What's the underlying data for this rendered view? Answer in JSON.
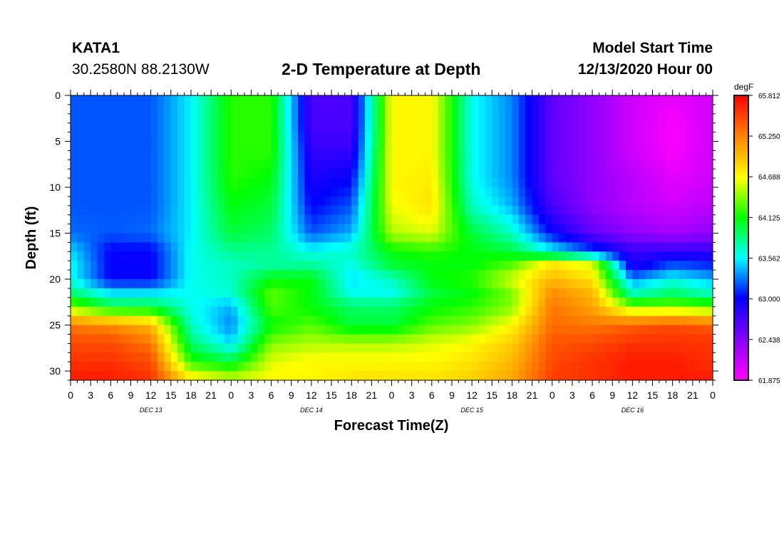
{
  "header": {
    "station": "KATA1",
    "coords": "30.2580N 88.2130W",
    "title": "2-D Temperature at Depth",
    "start_label": "Model Start Time",
    "start_value": "12/13/2020 Hour 00"
  },
  "chart_data": {
    "type": "heatmap",
    "title": "2-D Temperature at Depth",
    "xlabel": "Forecast Time(Z)",
    "ylabel": "Depth (ft)",
    "x_tick_labels": [
      "0",
      "3",
      "6",
      "9",
      "12",
      "15",
      "18",
      "21",
      "0",
      "3",
      "6",
      "9",
      "12",
      "15",
      "18",
      "21",
      "0",
      "3",
      "6",
      "9",
      "12",
      "15",
      "18",
      "21",
      "0",
      "3",
      "6",
      "9",
      "12",
      "15",
      "18",
      "21",
      "0"
    ],
    "day_labels": [
      "DEC 13",
      "DEC 14",
      "DEC 15",
      "DEC 16"
    ],
    "xlim_hours": [
      0,
      96
    ],
    "ylim_ft": [
      0,
      31
    ],
    "y_ticks": [
      0,
      5,
      10,
      15,
      20,
      25,
      30
    ],
    "y_tick_labels": [
      "0",
      "5",
      "10",
      "15",
      "20",
      "25",
      "30"
    ],
    "colorbar": {
      "unit": "degF",
      "min": 61.875,
      "max": 65.812,
      "labels": [
        "65.812",
        "65.250",
        "64.688",
        "64.125",
        "63.562",
        "63.000",
        "62.438",
        "61.875"
      ]
    },
    "grid": {
      "x_hours": [
        0,
        6,
        12,
        18,
        24,
        30,
        36,
        42,
        48,
        54,
        60,
        66,
        72,
        78,
        84,
        90,
        96
      ],
      "y_depths": [
        0,
        3,
        6,
        9,
        12,
        15,
        17,
        18.5,
        20,
        21.5,
        23,
        25,
        27,
        29,
        31
      ],
      "values": [
        [
          63.2,
          63.2,
          63.2,
          63.55,
          64.2,
          64.2,
          62.7,
          62.7,
          64.7,
          64.7,
          63.6,
          63.3,
          62.6,
          62.4,
          62.1,
          62.0,
          62.1
        ],
        [
          63.2,
          63.2,
          63.2,
          63.55,
          64.2,
          64.2,
          62.7,
          62.7,
          64.7,
          64.7,
          63.6,
          63.3,
          62.6,
          62.4,
          62.1,
          61.9,
          62.1
        ],
        [
          63.2,
          63.2,
          63.2,
          63.55,
          64.2,
          64.2,
          62.8,
          62.8,
          64.7,
          64.7,
          63.6,
          63.3,
          62.6,
          62.4,
          62.1,
          61.9,
          62.1
        ],
        [
          63.2,
          63.2,
          63.2,
          63.55,
          64.2,
          64.1,
          62.9,
          63.0,
          64.7,
          64.75,
          63.6,
          63.3,
          62.6,
          62.4,
          62.2,
          62.0,
          62.1
        ],
        [
          63.2,
          63.2,
          63.2,
          63.55,
          64.1,
          64.0,
          63.0,
          63.2,
          64.65,
          64.8,
          63.7,
          63.4,
          62.7,
          62.4,
          62.2,
          62.1,
          62.2
        ],
        [
          63.25,
          63.2,
          63.25,
          63.55,
          64.0,
          63.9,
          63.2,
          63.4,
          64.5,
          64.6,
          64.0,
          63.7,
          63.0,
          62.6,
          62.4,
          62.3,
          62.4
        ],
        [
          63.5,
          63.0,
          63.0,
          63.6,
          63.8,
          63.8,
          63.6,
          63.7,
          64.1,
          64.2,
          64.1,
          64.0,
          63.6,
          63.2,
          62.8,
          62.8,
          62.8
        ],
        [
          63.6,
          63.0,
          63.0,
          63.6,
          63.7,
          63.8,
          63.8,
          63.6,
          64.0,
          64.1,
          64.1,
          64.3,
          64.8,
          64.6,
          62.9,
          63.2,
          63.1
        ],
        [
          63.6,
          63.0,
          63.0,
          63.6,
          63.7,
          64.1,
          64.1,
          63.5,
          63.7,
          64.1,
          64.2,
          64.6,
          65.0,
          64.8,
          63.3,
          63.6,
          63.4
        ],
        [
          63.9,
          63.5,
          63.5,
          63.6,
          63.65,
          64.3,
          64.1,
          63.6,
          63.6,
          64.0,
          64.1,
          64.4,
          65.2,
          65.0,
          63.7,
          63.9,
          63.7
        ],
        [
          64.4,
          64.0,
          64.0,
          63.6,
          63.4,
          64.3,
          64.1,
          63.9,
          63.9,
          64.1,
          64.2,
          64.4,
          65.3,
          65.1,
          64.4,
          64.4,
          64.3
        ],
        [
          65.3,
          65.2,
          65.0,
          63.7,
          63.3,
          64.1,
          64.3,
          64.0,
          64.0,
          64.3,
          64.4,
          64.7,
          65.35,
          65.3,
          65.4,
          65.5,
          65.4
        ],
        [
          65.5,
          65.5,
          65.3,
          63.9,
          63.5,
          64.4,
          64.5,
          64.5,
          64.5,
          64.6,
          64.7,
          64.9,
          65.45,
          65.5,
          65.6,
          65.6,
          65.6
        ],
        [
          65.6,
          65.6,
          65.5,
          64.2,
          64.0,
          64.6,
          64.7,
          64.7,
          64.7,
          64.7,
          64.8,
          65.0,
          65.5,
          65.6,
          65.7,
          65.7,
          65.6
        ],
        [
          65.7,
          65.7,
          65.6,
          64.8,
          64.6,
          64.7,
          64.7,
          64.8,
          64.8,
          64.8,
          64.9,
          65.1,
          65.55,
          65.6,
          65.7,
          65.7,
          65.7
        ]
      ]
    }
  }
}
